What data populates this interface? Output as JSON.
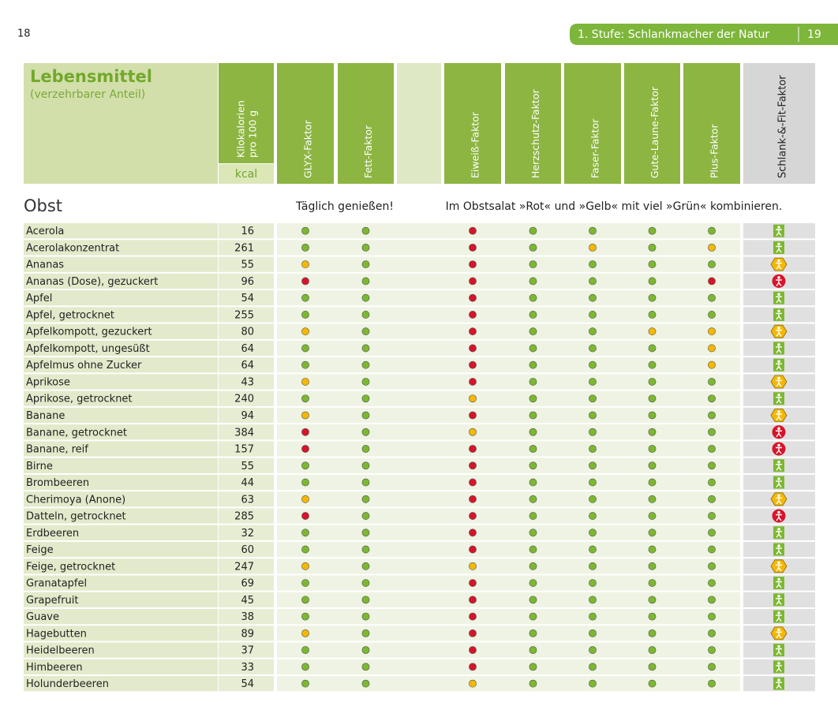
{
  "header": {
    "page_left": "18",
    "chapter": "1. Stufe: Schlankmacher der Natur",
    "page_right": "19"
  },
  "table": {
    "title": "Lebensmittel",
    "subtitle": "(verzehrbarer Anteil)",
    "kcal_header": [
      "Kilokalorien",
      "pro 100 g"
    ],
    "kcal_unit": "kcal",
    "factor_columns": [
      "GLYX-Faktor",
      "Fett-Faktor",
      "Eiweiß-Faktor",
      "Herzschutz-Faktor",
      "Faser-Faktor",
      "Gute-Laune-Faktor",
      "Plus-Faktor"
    ],
    "result_column": "Schlank-&-Fit-Faktor",
    "section": "Obst",
    "note_left": "Täglich genießen!",
    "note_right": "Im Obstsalat »Rot« und »Gelb« mit viel »Grün« kombinieren.",
    "rating_colors": {
      "g": "#7cb82f",
      "y": "#f5b800",
      "r": "#d7142a"
    },
    "rows": [
      {
        "name": "Acerola",
        "kcal": 16,
        "ratings": [
          "g",
          "g",
          "r",
          "g",
          "g",
          "g",
          "g"
        ],
        "result": "g"
      },
      {
        "name": "Acerolakonzentrat",
        "kcal": 261,
        "ratings": [
          "g",
          "g",
          "r",
          "g",
          "y",
          "g",
          "y"
        ],
        "result": "g"
      },
      {
        "name": "Ananas",
        "kcal": 55,
        "ratings": [
          "y",
          "g",
          "r",
          "g",
          "g",
          "g",
          "g"
        ],
        "result": "y"
      },
      {
        "name": "Ananas (Dose), gezuckert",
        "kcal": 96,
        "ratings": [
          "r",
          "g",
          "r",
          "g",
          "g",
          "g",
          "r"
        ],
        "result": "r"
      },
      {
        "name": "Apfel",
        "kcal": 54,
        "ratings": [
          "g",
          "g",
          "r",
          "g",
          "g",
          "g",
          "g"
        ],
        "result": "g"
      },
      {
        "name": "Apfel, getrocknet",
        "kcal": 255,
        "ratings": [
          "g",
          "g",
          "r",
          "g",
          "g",
          "g",
          "g"
        ],
        "result": "g"
      },
      {
        "name": "Apfelkompott, gezuckert",
        "kcal": 80,
        "ratings": [
          "y",
          "g",
          "r",
          "g",
          "g",
          "y",
          "y"
        ],
        "result": "y"
      },
      {
        "name": "Apfelkompott, ungesüßt",
        "kcal": 64,
        "ratings": [
          "g",
          "g",
          "r",
          "g",
          "g",
          "g",
          "y"
        ],
        "result": "g"
      },
      {
        "name": "Apfelmus ohne Zucker",
        "kcal": 64,
        "ratings": [
          "g",
          "g",
          "r",
          "g",
          "g",
          "g",
          "y"
        ],
        "result": "g"
      },
      {
        "name": "Aprikose",
        "kcal": 43,
        "ratings": [
          "y",
          "g",
          "r",
          "g",
          "g",
          "g",
          "g"
        ],
        "result": "y"
      },
      {
        "name": "Aprikose, getrocknet",
        "kcal": 240,
        "ratings": [
          "g",
          "g",
          "y",
          "g",
          "g",
          "g",
          "g"
        ],
        "result": "g"
      },
      {
        "name": "Banane",
        "kcal": 94,
        "ratings": [
          "y",
          "g",
          "r",
          "g",
          "g",
          "g",
          "g"
        ],
        "result": "y"
      },
      {
        "name": "Banane, getrocknet",
        "kcal": 384,
        "ratings": [
          "r",
          "g",
          "y",
          "g",
          "g",
          "g",
          "g"
        ],
        "result": "r"
      },
      {
        "name": "Banane, reif",
        "kcal": 157,
        "ratings": [
          "r",
          "g",
          "r",
          "g",
          "g",
          "g",
          "g"
        ],
        "result": "r"
      },
      {
        "name": "Birne",
        "kcal": 55,
        "ratings": [
          "g",
          "g",
          "r",
          "g",
          "g",
          "g",
          "g"
        ],
        "result": "g"
      },
      {
        "name": "Brombeeren",
        "kcal": 44,
        "ratings": [
          "g",
          "g",
          "r",
          "g",
          "g",
          "g",
          "g"
        ],
        "result": "g"
      },
      {
        "name": "Cherimoya (Anone)",
        "kcal": 63,
        "ratings": [
          "y",
          "g",
          "r",
          "g",
          "g",
          "g",
          "g"
        ],
        "result": "y"
      },
      {
        "name": "Datteln, getrocknet",
        "kcal": 285,
        "ratings": [
          "r",
          "g",
          "r",
          "g",
          "g",
          "g",
          "g"
        ],
        "result": "r"
      },
      {
        "name": "Erdbeeren",
        "kcal": 32,
        "ratings": [
          "g",
          "g",
          "r",
          "g",
          "g",
          "g",
          "g"
        ],
        "result": "g"
      },
      {
        "name": "Feige",
        "kcal": 60,
        "ratings": [
          "g",
          "g",
          "r",
          "g",
          "g",
          "g",
          "g"
        ],
        "result": "g"
      },
      {
        "name": "Feige, getrocknet",
        "kcal": 247,
        "ratings": [
          "y",
          "g",
          "y",
          "g",
          "g",
          "g",
          "g"
        ],
        "result": "y"
      },
      {
        "name": "Granatapfel",
        "kcal": 69,
        "ratings": [
          "g",
          "g",
          "r",
          "g",
          "g",
          "g",
          "g"
        ],
        "result": "g"
      },
      {
        "name": "Grapefruit",
        "kcal": 45,
        "ratings": [
          "g",
          "g",
          "r",
          "g",
          "g",
          "g",
          "g"
        ],
        "result": "g"
      },
      {
        "name": "Guave",
        "kcal": 38,
        "ratings": [
          "g",
          "g",
          "r",
          "g",
          "g",
          "g",
          "g"
        ],
        "result": "g"
      },
      {
        "name": "Hagebutten",
        "kcal": 89,
        "ratings": [
          "y",
          "g",
          "r",
          "g",
          "g",
          "g",
          "g"
        ],
        "result": "y"
      },
      {
        "name": "Heidelbeeren",
        "kcal": 37,
        "ratings": [
          "g",
          "g",
          "r",
          "g",
          "g",
          "g",
          "g"
        ],
        "result": "g"
      },
      {
        "name": "Himbeeren",
        "kcal": 33,
        "ratings": [
          "g",
          "g",
          "r",
          "g",
          "g",
          "g",
          "g"
        ],
        "result": "g"
      },
      {
        "name": "Holunderbeeren",
        "kcal": 54,
        "ratings": [
          "g",
          "g",
          "y",
          "g",
          "g",
          "g",
          "g"
        ],
        "result": "g"
      }
    ]
  }
}
